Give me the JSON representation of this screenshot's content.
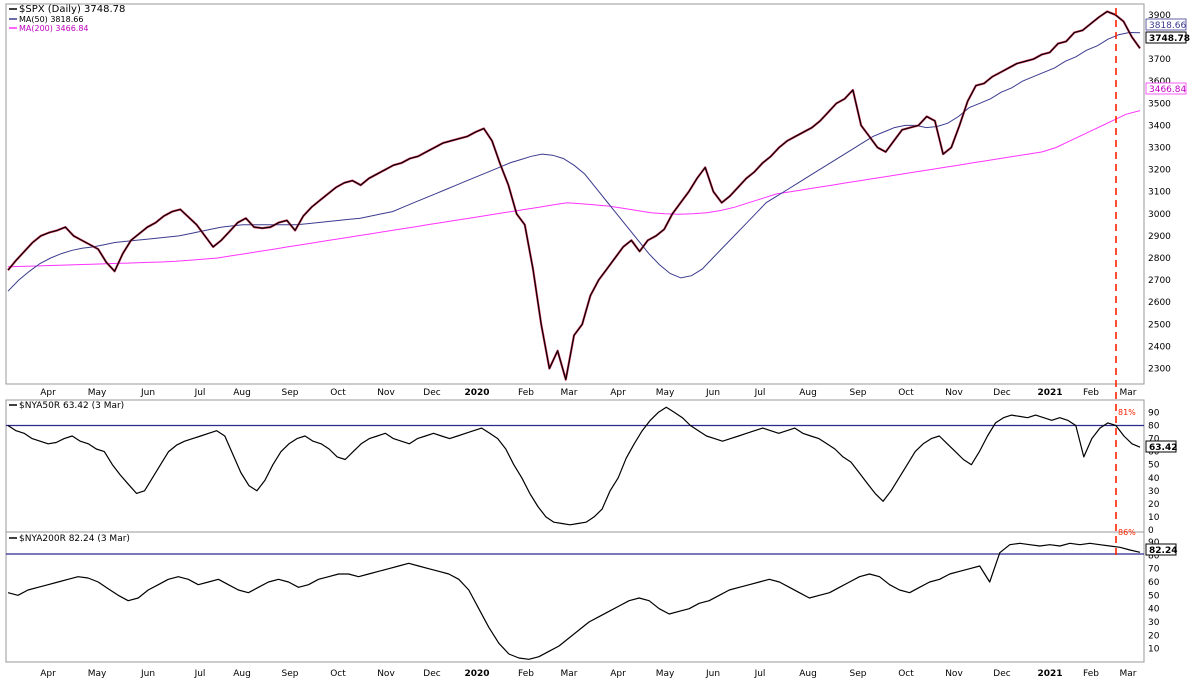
{
  "chart_data": [
    {
      "type": "line",
      "panel": "price",
      "title": "$SPX (Daily) 3748.78",
      "legend_placement": "top-left",
      "series": [
        {
          "name": "MA(50) 3818.66",
          "color": "#3b3b8f"
        },
        {
          "name": "MA(200) 3466.84",
          "color": "#ff00ff"
        }
      ],
      "series_values": {
        "price": [
          2745,
          2790,
          2830,
          2870,
          2900,
          2915,
          2925,
          2940,
          2900,
          2880,
          2860,
          2840,
          2780,
          2740,
          2820,
          2880,
          2910,
          2940,
          2960,
          2990,
          3010,
          3020,
          2985,
          2950,
          2900,
          2850,
          2880,
          2920,
          2960,
          2980,
          2940,
          2935,
          2940,
          2960,
          2970,
          2925,
          2990,
          3030,
          3060,
          3090,
          3120,
          3140,
          3150,
          3130,
          3160,
          3180,
          3200,
          3220,
          3230,
          3250,
          3260,
          3280,
          3300,
          3320,
          3330,
          3340,
          3350,
          3370,
          3386,
          3330,
          3225,
          3130,
          3000,
          2950,
          2750,
          2500,
          2300,
          2380,
          2250,
          2450,
          2500,
          2630,
          2700,
          2750,
          2800,
          2850,
          2880,
          2830,
          2880,
          2900,
          2930,
          3000,
          3050,
          3100,
          3160,
          3210,
          3100,
          3050,
          3080,
          3120,
          3160,
          3190,
          3230,
          3260,
          3300,
          3330,
          3350,
          3370,
          3390,
          3420,
          3460,
          3500,
          3520,
          3560,
          3400,
          3350,
          3300,
          3280,
          3330,
          3380,
          3390,
          3400,
          3440,
          3420,
          3270,
          3300,
          3400,
          3510,
          3580,
          3590,
          3620,
          3640,
          3660,
          3680,
          3690,
          3700,
          3720,
          3730,
          3770,
          3780,
          3820,
          3830,
          3860,
          3890,
          3915,
          3900,
          3870,
          3800,
          3748.78
        ],
        "ma50": [
          2650,
          2700,
          2740,
          2775,
          2800,
          2820,
          2835,
          2845,
          2850,
          2860,
          2870,
          2875,
          2880,
          2885,
          2890,
          2895,
          2900,
          2910,
          2920,
          2930,
          2940,
          2945,
          2950,
          2950,
          2950,
          2950,
          2950,
          2950,
          2955,
          2960,
          2965,
          2970,
          2975,
          2980,
          2990,
          3000,
          3010,
          3030,
          3050,
          3070,
          3090,
          3110,
          3130,
          3150,
          3170,
          3190,
          3210,
          3230,
          3245,
          3260,
          3270,
          3265,
          3250,
          3220,
          3180,
          3120,
          3060,
          3000,
          2940,
          2880,
          2820,
          2770,
          2730,
          2710,
          2720,
          2750,
          2800,
          2850,
          2900,
          2950,
          3000,
          3050,
          3080,
          3110,
          3140,
          3170,
          3200,
          3230,
          3260,
          3290,
          3320,
          3350,
          3370,
          3390,
          3400,
          3400,
          3390,
          3395,
          3410,
          3440,
          3480,
          3500,
          3520,
          3550,
          3570,
          3600,
          3620,
          3640,
          3660,
          3690,
          3710,
          3740,
          3760,
          3790,
          3810,
          3820,
          3818.66
        ],
        "ma200": [
          2760,
          2762,
          2764,
          2766,
          2768,
          2770,
          2772,
          2774,
          2776,
          2778,
          2780,
          2782,
          2785,
          2790,
          2795,
          2800,
          2810,
          2820,
          2830,
          2840,
          2850,
          2860,
          2870,
          2880,
          2890,
          2900,
          2910,
          2920,
          2930,
          2940,
          2950,
          2960,
          2970,
          2980,
          2990,
          3000,
          3010,
          3020,
          3030,
          3040,
          3050,
          3045,
          3040,
          3035,
          3025,
          3015,
          3005,
          3000,
          2998,
          3000,
          3005,
          3015,
          3030,
          3050,
          3070,
          3090,
          3100,
          3110,
          3120,
          3130,
          3140,
          3150,
          3160,
          3170,
          3180,
          3190,
          3200,
          3210,
          3220,
          3230,
          3240,
          3250,
          3260,
          3270,
          3280,
          3300,
          3330,
          3360,
          3390,
          3420,
          3450,
          3466.84
        ]
      },
      "y_ticks": [
        2300,
        2400,
        2500,
        2600,
        2700,
        2800,
        2900,
        3000,
        3100,
        3200,
        3300,
        3400,
        3500,
        3600,
        3700,
        3800,
        3900
      ],
      "ylim": [
        2230,
        3940
      ],
      "last_labels": {
        "ma50": "3818.66",
        "price": "3748.78",
        "ma200": "3466.84"
      },
      "annotation": {
        "type": "vertical-dashed-line",
        "color": "#ff2200"
      }
    },
    {
      "type": "line",
      "panel": "breadth50",
      "title": "$NYA50R 63.42 (3 Mar)",
      "values": [
        80,
        76,
        74,
        70,
        68,
        66,
        67,
        70,
        72,
        68,
        66,
        62,
        60,
        50,
        42,
        35,
        28,
        30,
        40,
        50,
        60,
        65,
        68,
        70,
        72,
        74,
        76,
        72,
        58,
        44,
        34,
        30,
        38,
        50,
        60,
        66,
        70,
        72,
        68,
        66,
        62,
        56,
        54,
        60,
        66,
        70,
        72,
        74,
        70,
        68,
        66,
        70,
        72,
        74,
        72,
        70,
        72,
        74,
        76,
        78,
        74,
        70,
        62,
        50,
        40,
        28,
        18,
        10,
        6,
        5,
        4,
        5,
        6,
        10,
        16,
        30,
        40,
        55,
        66,
        76,
        84,
        90,
        94,
        90,
        86,
        80,
        76,
        72,
        70,
        68,
        70,
        72,
        74,
        76,
        78,
        76,
        74,
        76,
        78,
        74,
        72,
        70,
        66,
        62,
        56,
        52,
        44,
        36,
        28,
        22,
        30,
        40,
        50,
        60,
        66,
        70,
        72,
        66,
        60,
        54,
        50,
        60,
        72,
        82,
        86,
        88,
        87,
        86,
        88,
        86,
        84,
        86,
        84,
        80,
        56,
        70,
        78,
        82,
        80,
        72,
        66,
        63.42
      ],
      "y_ticks": [
        0,
        10,
        20,
        30,
        40,
        50,
        60,
        70,
        80,
        90
      ],
      "ylim": [
        0,
        98
      ],
      "reference_line": 80,
      "annotation_label": "81%",
      "last_label": "63.42"
    },
    {
      "type": "line",
      "panel": "breadth200",
      "title": "$NYA200R 82.24 (3 Mar)",
      "values": [
        52,
        50,
        54,
        56,
        58,
        60,
        62,
        64,
        63,
        60,
        55,
        50,
        46,
        48,
        54,
        58,
        62,
        64,
        62,
        58,
        60,
        62,
        58,
        54,
        52,
        56,
        60,
        62,
        60,
        56,
        58,
        62,
        64,
        66,
        66,
        64,
        66,
        68,
        70,
        72,
        74,
        72,
        70,
        68,
        66,
        62,
        54,
        40,
        26,
        14,
        6,
        3,
        2,
        4,
        8,
        12,
        18,
        24,
        30,
        34,
        38,
        42,
        46,
        48,
        46,
        40,
        36,
        38,
        40,
        44,
        46,
        50,
        54,
        56,
        58,
        60,
        62,
        60,
        56,
        52,
        48,
        50,
        52,
        56,
        60,
        64,
        66,
        64,
        58,
        54,
        52,
        56,
        60,
        62,
        66,
        68,
        70,
        72,
        60,
        82,
        88,
        89,
        88,
        87,
        88,
        87,
        89,
        88,
        89,
        88,
        87,
        86,
        84,
        82.24
      ],
      "y_ticks": [
        10,
        20,
        30,
        40,
        50,
        60,
        70,
        80,
        90
      ],
      "ylim": [
        0,
        96
      ],
      "reference_line": 81,
      "annotation_label": "86%",
      "last_label": "82.24"
    }
  ],
  "x_axis": {
    "labels": [
      "Apr",
      "May",
      "Jun",
      "Jul",
      "Aug",
      "Sep",
      "Oct",
      "Nov",
      "Dec",
      "2020",
      "Feb",
      "Mar",
      "Apr",
      "May",
      "Jun",
      "Jul",
      "Aug",
      "Sep",
      "Oct",
      "Nov",
      "Dec",
      "2021",
      "Feb",
      "Mar"
    ],
    "bold": [
      "2020",
      "2021"
    ]
  },
  "colors": {
    "price_line": "#000000",
    "price_down": "#c0103a",
    "ma50": "#3b3b8f",
    "ma200": "#ff33ff",
    "reference": "#2b2b8f",
    "annotation": "#ff2200",
    "border": "#888888"
  }
}
